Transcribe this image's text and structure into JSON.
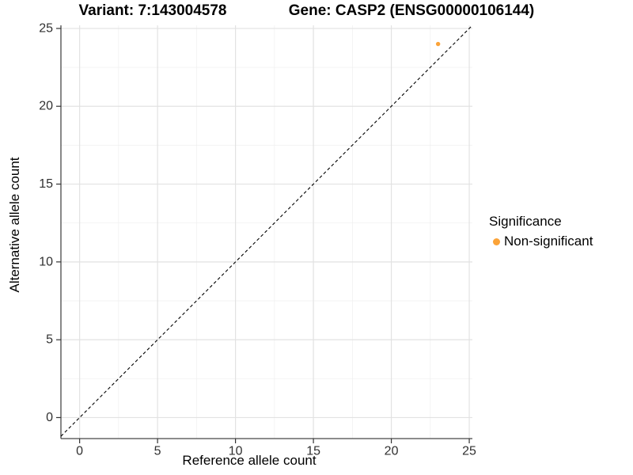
{
  "chart_data": {
    "type": "scatter",
    "titles": {
      "variant": "Variant: 7:143004578",
      "gene": "Gene: CASP2 (ENSG00000106144)"
    },
    "xlabel": "Reference allele count",
    "ylabel": "Alternative allele count",
    "xlim": [
      -1.2,
      25.2
    ],
    "ylim": [
      -1.35,
      25.2
    ],
    "x_major_ticks": [
      0,
      5,
      10,
      15,
      20,
      25
    ],
    "y_major_ticks": [
      0,
      5,
      10,
      15,
      20,
      25
    ],
    "x_minor_ticks": [
      2.5,
      7.5,
      12.5,
      17.5,
      22.5
    ],
    "y_minor_ticks": [
      2.5,
      7.5,
      12.5,
      17.5,
      22.5
    ],
    "grid": "major+minor",
    "points": [
      {
        "x": 23,
        "y": 24,
        "series": "Non-significant"
      }
    ],
    "identity_line": {
      "slope": 1,
      "intercept": 0,
      "style": "dashed",
      "color": "#000000"
    },
    "legend": {
      "title": "Significance",
      "position": "right",
      "entries": [
        {
          "label": "Non-significant",
          "color": "#FBA338"
        }
      ]
    },
    "colors": {
      "point": "#FBA338",
      "grid_major": "#E2E2E2",
      "grid_minor": "#EFEFEF",
      "axis_line": "#474747",
      "tick": "#333333",
      "tick_text": "#303030"
    }
  }
}
